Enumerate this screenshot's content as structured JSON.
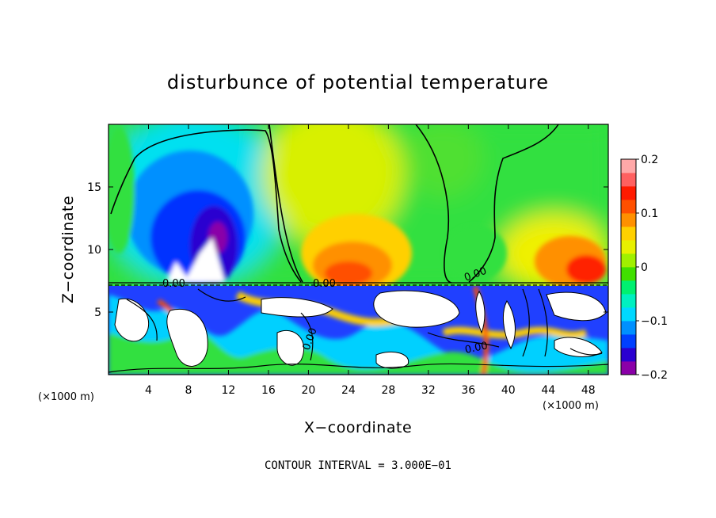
{
  "chart_data": {
    "type": "heatmap",
    "title": "disturbunce of potential temperature",
    "xlabel": "X−coordinate",
    "ylabel": "Z−coordinate",
    "x_unit_left": "(×1000 m)",
    "x_unit_right": "(×1000 m)",
    "xlim": [
      0,
      50
    ],
    "ylim": [
      0,
      20
    ],
    "x_ticks": [
      4,
      8,
      12,
      16,
      20,
      24,
      28,
      32,
      36,
      40,
      44,
      48
    ],
    "y_ticks": [
      5,
      10,
      15
    ],
    "colorbar": {
      "range": [
        -0.2,
        0.2
      ],
      "tick_values": [
        0.2,
        0.1,
        0,
        -0.1,
        -0.2
      ],
      "tick_labels": [
        "0.2",
        "0.1",
        "0",
        "−0.1",
        "−0.2"
      ],
      "colors": [
        "#8a00a8",
        "#2a00d0",
        "#0040ff",
        "#0090ff",
        "#00d8ff",
        "#00f0c0",
        "#00f070",
        "#40e000",
        "#a0f000",
        "#e8f000",
        "#ffd000",
        "#ff9000",
        "#ff5000",
        "#ff1a00",
        "#ff6060",
        "#ffa8a8"
      ]
    },
    "contour_label": "0.00",
    "contour_interval_text": "CONTOUR INTERVAL = 3.000E−01",
    "regions": [
      {
        "x": 11,
        "z": 10,
        "value": -0.2
      },
      {
        "x": 10,
        "z": 13,
        "value": -0.15
      },
      {
        "x": 8,
        "z": 15,
        "value": -0.08
      },
      {
        "x": 26,
        "z": 12,
        "value": 0.05
      },
      {
        "x": 27,
        "z": 9,
        "value": 0.12
      },
      {
        "x": 31,
        "z": 15,
        "value": 0.03
      },
      {
        "x": 39,
        "z": 16,
        "value": 0.0
      },
      {
        "x": 47,
        "z": 9,
        "value": 0.14
      },
      {
        "x": 47,
        "z": 15,
        "value": 0.0
      }
    ]
  }
}
